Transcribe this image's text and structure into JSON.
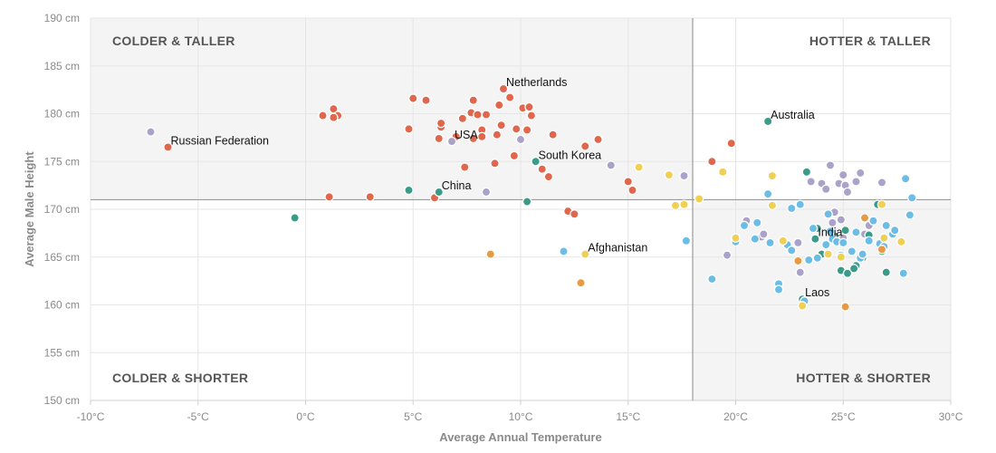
{
  "chart_data": {
    "type": "scatter",
    "xlabel": "Average Annual Temperature",
    "ylabel": "Average Male Height",
    "xlim": [
      -10,
      30
    ],
    "ylim": [
      150,
      190
    ],
    "x_ticks": [
      "-10°C",
      "-5°C",
      "0°C",
      "5°C",
      "10°C",
      "15°C",
      "20°C",
      "25°C",
      "30°C"
    ],
    "y_ticks": [
      "150 cm",
      "155 cm",
      "160 cm",
      "165 cm",
      "170 cm",
      "175 cm",
      "180 cm",
      "185 cm",
      "190 cm"
    ],
    "grid": true,
    "divider": {
      "x": 18,
      "y": 171
    },
    "quadrants": {
      "top_left": "COLDER & TALLER",
      "top_right": "HOTTER & TALLER",
      "bottom_left": "COLDER & SHORTER",
      "bottom_right": "HOTTER & SHORTER"
    },
    "colors": {
      "red": "#e0674b",
      "purple": "#aaa2c9",
      "teal": "#3b9b89",
      "blue": "#6bbde6",
      "yellow": "#f0cf55",
      "orange": "#e69a44"
    },
    "series": [
      {
        "color": "red",
        "points": [
          [
            -6.4,
            176.5
          ],
          [
            0.8,
            179.8
          ],
          [
            1.3,
            180.5
          ],
          [
            1.5,
            179.8
          ],
          [
            1.3,
            179.6
          ],
          [
            1.1,
            171.3
          ],
          [
            3.0,
            171.3
          ],
          [
            4.8,
            178.4
          ],
          [
            5.0,
            181.6
          ],
          [
            5.6,
            181.4
          ],
          [
            6.0,
            171.2
          ],
          [
            6.2,
            177.4
          ],
          [
            6.3,
            178.6
          ],
          [
            6.3,
            179.0
          ],
          [
            7.0,
            177.6
          ],
          [
            7.3,
            179.5
          ],
          [
            7.4,
            174.4
          ],
          [
            7.7,
            180.1
          ],
          [
            7.8,
            181.4
          ],
          [
            7.8,
            177.4
          ],
          [
            8.0,
            179.9
          ],
          [
            8.2,
            178.3
          ],
          [
            8.2,
            177.6
          ],
          [
            8.4,
            179.9
          ],
          [
            8.8,
            174.8
          ],
          [
            8.9,
            177.8
          ],
          [
            9.0,
            180.9
          ],
          [
            9.1,
            178.8
          ],
          [
            9.2,
            182.6
          ],
          [
            9.5,
            181.7
          ],
          [
            9.7,
            175.6
          ],
          [
            9.8,
            178.4
          ],
          [
            10.0,
            177.3
          ],
          [
            10.1,
            180.6
          ],
          [
            10.3,
            178.3
          ],
          [
            10.4,
            180.7
          ],
          [
            10.5,
            179.8
          ],
          [
            11.0,
            174.2
          ],
          [
            11.3,
            173.4
          ],
          [
            11.5,
            177.8
          ],
          [
            12.2,
            169.8
          ],
          [
            12.5,
            169.5
          ],
          [
            13.0,
            176.6
          ],
          [
            13.6,
            177.3
          ],
          [
            15.0,
            172.9
          ],
          [
            15.2,
            172.0
          ],
          [
            18.9,
            175.0
          ],
          [
            19.8,
            176.9
          ]
        ]
      },
      {
        "color": "purple",
        "points": [
          [
            -7.2,
            178.1
          ],
          [
            6.8,
            177.1
          ],
          [
            8.4,
            171.8
          ],
          [
            10.0,
            177.3
          ],
          [
            14.2,
            174.6
          ],
          [
            17.6,
            173.5
          ],
          [
            19.6,
            165.2
          ],
          [
            20.5,
            168.8
          ],
          [
            21.2,
            167.1
          ],
          [
            21.3,
            167.4
          ],
          [
            22.9,
            166.5
          ],
          [
            23.0,
            163.4
          ],
          [
            23.5,
            172.9
          ],
          [
            24.0,
            172.7
          ],
          [
            24.4,
            174.6
          ],
          [
            24.2,
            172.1
          ],
          [
            24.6,
            169.7
          ],
          [
            24.5,
            168.6
          ],
          [
            24.8,
            172.7
          ],
          [
            25.0,
            173.6
          ],
          [
            25.1,
            172.5
          ],
          [
            25.2,
            171.8
          ],
          [
            25.6,
            172.9
          ],
          [
            25.8,
            173.8
          ],
          [
            25.0,
            167.0
          ],
          [
            24.9,
            168.9
          ],
          [
            26.2,
            168.3
          ],
          [
            26.0,
            167.4
          ],
          [
            26.8,
            166.6
          ],
          [
            26.8,
            172.8
          ]
        ]
      },
      {
        "color": "teal",
        "points": [
          [
            -0.5,
            169.1
          ],
          [
            4.8,
            172.0
          ],
          [
            6.2,
            171.8
          ],
          [
            10.7,
            175.0
          ],
          [
            10.3,
            170.8
          ],
          [
            21.5,
            179.2
          ],
          [
            23.3,
            173.9
          ],
          [
            23.1,
            160.6
          ],
          [
            23.7,
            166.9
          ],
          [
            23.8,
            168.0
          ],
          [
            24.0,
            165.3
          ],
          [
            24.6,
            167.2
          ],
          [
            24.9,
            163.6
          ],
          [
            25.2,
            163.3
          ],
          [
            25.6,
            164.1
          ],
          [
            25.5,
            163.8
          ],
          [
            25.9,
            164.9
          ],
          [
            26.2,
            167.3
          ],
          [
            26.6,
            170.5
          ],
          [
            26.8,
            165.6
          ],
          [
            27.0,
            163.4
          ],
          [
            25.1,
            167.8
          ]
        ]
      },
      {
        "color": "blue",
        "points": [
          [
            12.0,
            165.6
          ],
          [
            17.7,
            166.7
          ],
          [
            18.9,
            162.7
          ],
          [
            20.0,
            166.6
          ],
          [
            20.4,
            168.3
          ],
          [
            20.9,
            166.9
          ],
          [
            21.0,
            168.6
          ],
          [
            21.5,
            171.6
          ],
          [
            21.6,
            166.5
          ],
          [
            22.0,
            162.2
          ],
          [
            22.0,
            161.6
          ],
          [
            22.4,
            166.3
          ],
          [
            22.6,
            165.7
          ],
          [
            22.6,
            170.1
          ],
          [
            23.0,
            170.5
          ],
          [
            23.2,
            160.4
          ],
          [
            23.4,
            164.7
          ],
          [
            23.6,
            168.0
          ],
          [
            23.8,
            164.9
          ],
          [
            24.2,
            166.3
          ],
          [
            24.3,
            169.5
          ],
          [
            24.4,
            167.7
          ],
          [
            24.5,
            166.9
          ],
          [
            24.7,
            166.6
          ],
          [
            24.9,
            165.2
          ],
          [
            25.0,
            166.5
          ],
          [
            25.4,
            165.6
          ],
          [
            25.6,
            167.6
          ],
          [
            25.8,
            164.9
          ],
          [
            25.9,
            165.3
          ],
          [
            26.2,
            166.7
          ],
          [
            26.4,
            168.8
          ],
          [
            26.7,
            166.4
          ],
          [
            26.9,
            166.1
          ],
          [
            27.0,
            168.3
          ],
          [
            27.3,
            167.4
          ],
          [
            27.4,
            167.8
          ],
          [
            27.8,
            163.3
          ],
          [
            27.9,
            173.2
          ],
          [
            28.1,
            169.4
          ],
          [
            28.2,
            171.2
          ]
        ]
      },
      {
        "color": "yellow",
        "points": [
          [
            13.0,
            165.3
          ],
          [
            15.5,
            174.4
          ],
          [
            16.9,
            173.6
          ],
          [
            17.2,
            170.4
          ],
          [
            17.6,
            170.5
          ],
          [
            18.3,
            171.1
          ],
          [
            19.4,
            173.9
          ],
          [
            20.0,
            167.0
          ],
          [
            21.7,
            173.5
          ],
          [
            21.7,
            170.4
          ],
          [
            22.2,
            166.7
          ],
          [
            23.1,
            159.9
          ],
          [
            24.3,
            165.3
          ],
          [
            24.9,
            165.0
          ],
          [
            26.8,
            170.5
          ],
          [
            26.9,
            167.0
          ],
          [
            27.7,
            166.6
          ]
        ]
      },
      {
        "color": "orange",
        "points": [
          [
            8.6,
            165.3
          ],
          [
            12.8,
            162.3
          ],
          [
            22.9,
            164.6
          ],
          [
            25.1,
            159.8
          ],
          [
            26.0,
            169.1
          ],
          [
            26.8,
            165.8
          ]
        ]
      }
    ],
    "labels": [
      {
        "text": "Netherlands",
        "x": 9.2,
        "y": 182.6
      },
      {
        "text": "Russian Federation",
        "x": -6.4,
        "y": 176.5
      },
      {
        "text": "USA",
        "x": 6.8,
        "y": 177.1
      },
      {
        "text": "South Korea",
        "x": 10.7,
        "y": 175.0
      },
      {
        "text": "China",
        "x": 6.2,
        "y": 171.8
      },
      {
        "text": "Afghanistan",
        "x": 13.0,
        "y": 165.3
      },
      {
        "text": "Australia",
        "x": 21.5,
        "y": 179.2
      },
      {
        "text": "India",
        "x": 23.7,
        "y": 166.9
      },
      {
        "text": "Laos",
        "x": 23.1,
        "y": 160.6
      }
    ]
  }
}
